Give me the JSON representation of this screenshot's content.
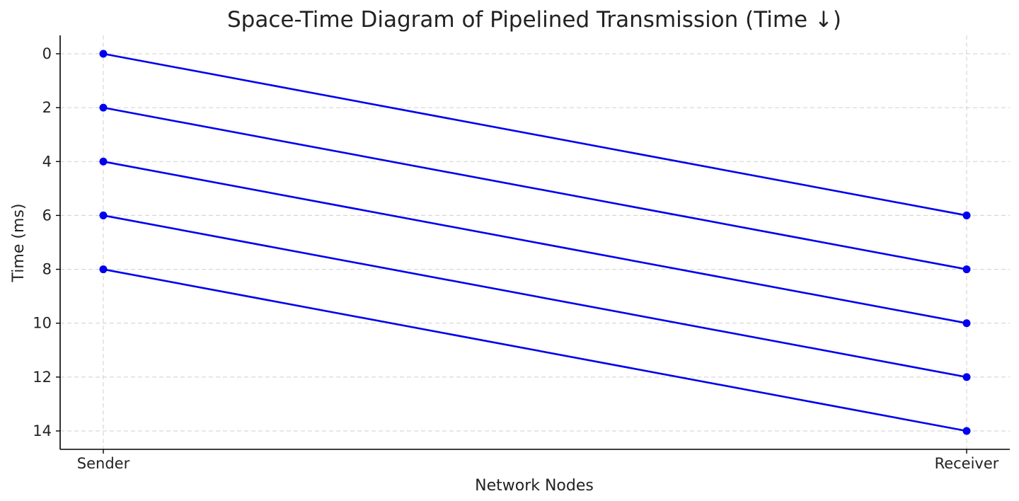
{
  "chart_data": {
    "type": "line",
    "title": "Space-Time Diagram of Pipelined Transmission (Time ↓)",
    "xlabel": "Network Nodes",
    "ylabel": "Time (ms)",
    "x_categories": [
      "Sender",
      "Receiver"
    ],
    "y_ticks": [
      0,
      2,
      4,
      6,
      8,
      10,
      12,
      14
    ],
    "ylim": [
      14.7,
      -0.7
    ],
    "y_inverted": true,
    "grid": true,
    "line_color": "#0000ee",
    "marker": "circle",
    "series": [
      {
        "x": [
          "Sender",
          "Receiver"
        ],
        "y": [
          0,
          6
        ]
      },
      {
        "x": [
          "Sender",
          "Receiver"
        ],
        "y": [
          2,
          8
        ]
      },
      {
        "x": [
          "Sender",
          "Receiver"
        ],
        "y": [
          4,
          10
        ]
      },
      {
        "x": [
          "Sender",
          "Receiver"
        ],
        "y": [
          6,
          12
        ]
      },
      {
        "x": [
          "Sender",
          "Receiver"
        ],
        "y": [
          8,
          14
        ]
      }
    ]
  }
}
